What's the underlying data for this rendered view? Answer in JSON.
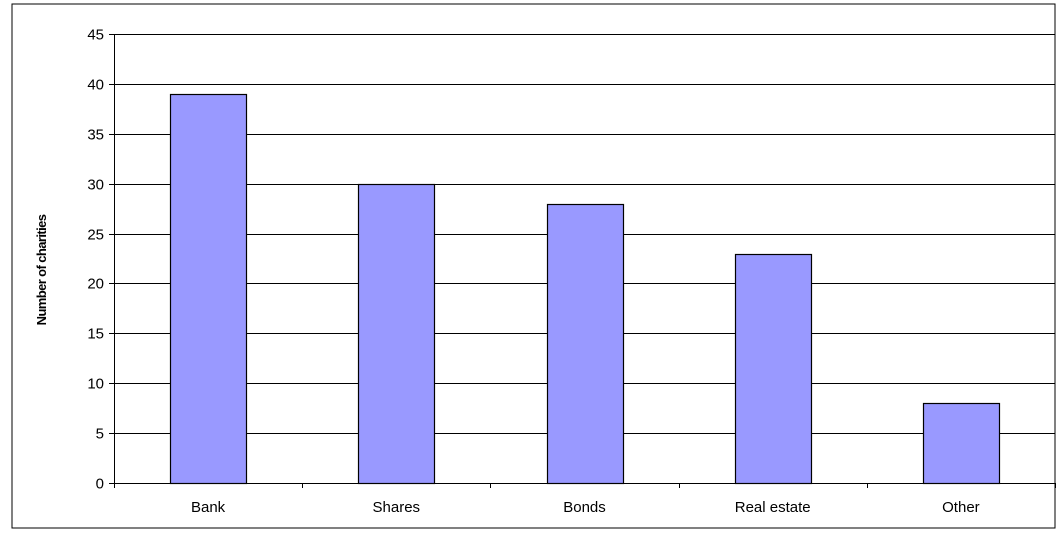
{
  "chart_data": {
    "type": "bar",
    "categories": [
      "Bank",
      "Shares",
      "Bonds",
      "Real estate",
      "Other"
    ],
    "values": [
      39,
      30,
      28,
      23,
      8
    ],
    "ylabel": "Number of charities",
    "ylim": [
      0,
      45
    ],
    "yticks": [
      "0",
      "5",
      "10",
      "15",
      "20",
      "25",
      "30",
      "35",
      "40",
      "45"
    ],
    "grid": true,
    "legend": "none",
    "colors": {
      "bar_fill": "#9999ff",
      "bar_stroke": "#000000",
      "gridline": "#000000",
      "axis": "#000000",
      "frame": "#000000"
    }
  }
}
